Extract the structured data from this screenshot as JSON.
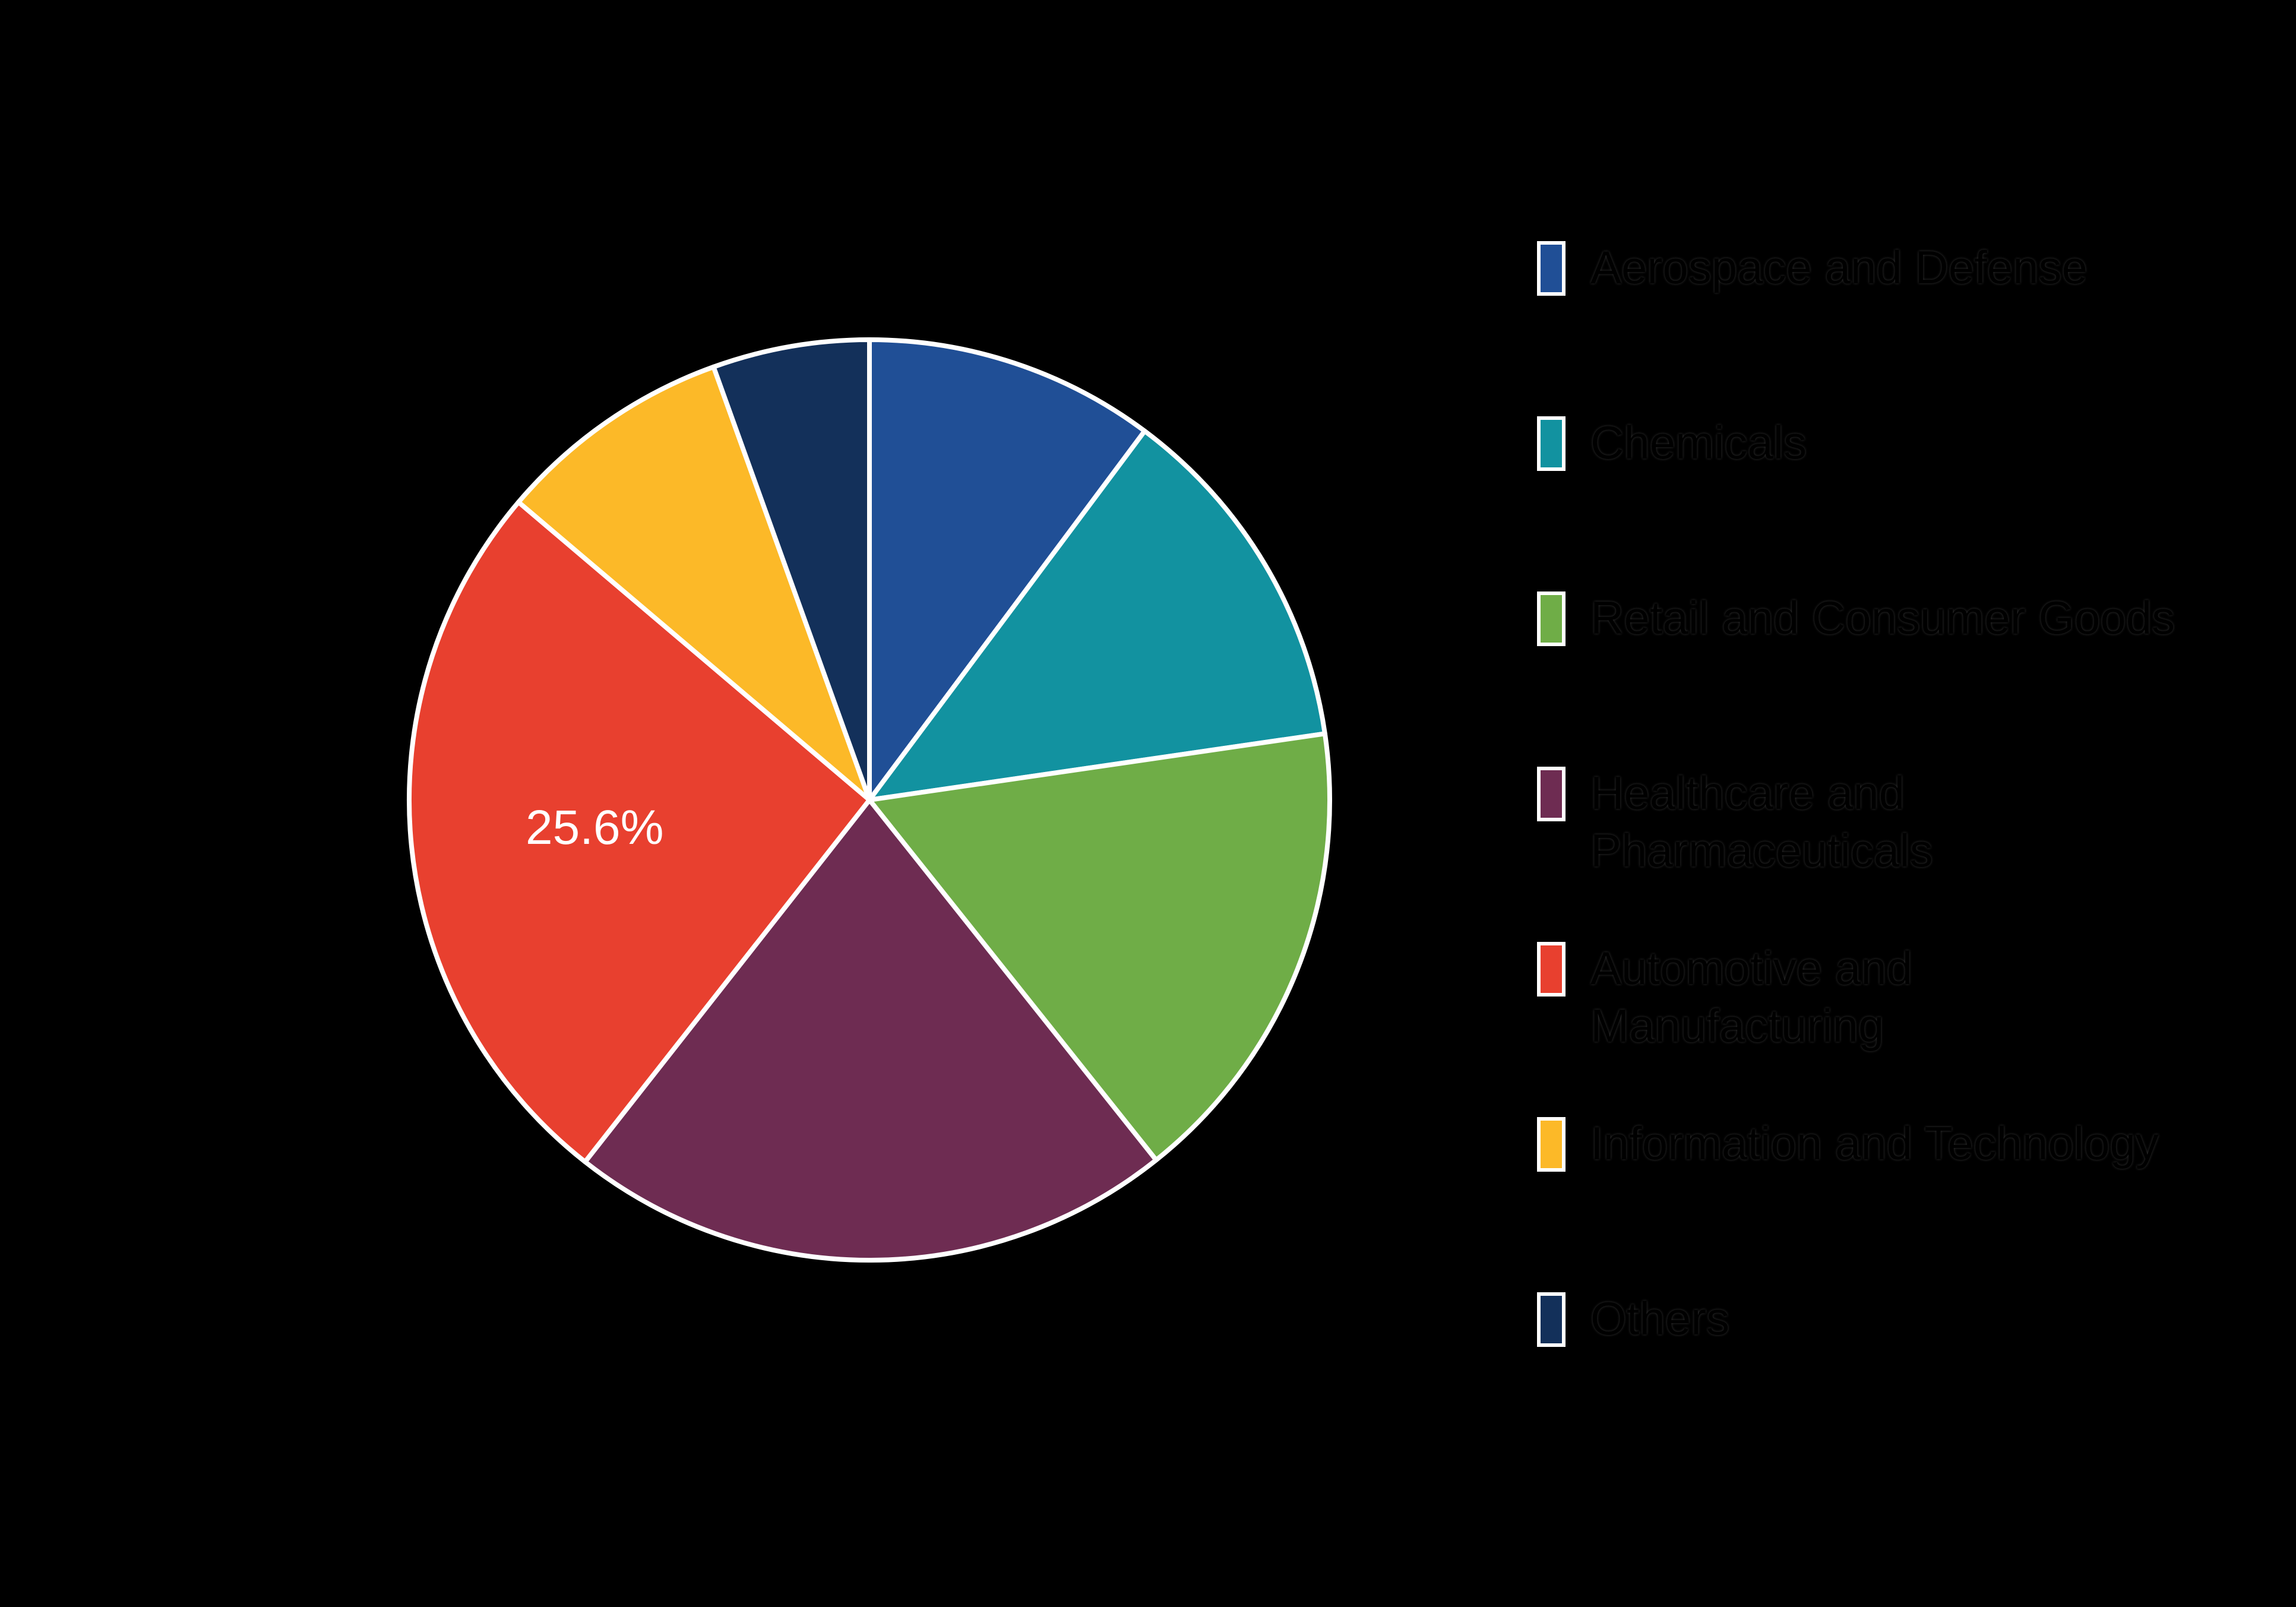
{
  "figure": {
    "background": "#000000"
  },
  "chart_data": {
    "type": "pie",
    "title": "",
    "categories": [
      "Aerospace and Defense",
      "Chemicals",
      "Retail and Consumer Goods",
      "Healthcare and Pharmaceuticals",
      "Automotive and Manufacturing",
      "Information and Technology",
      "Others"
    ],
    "values": [
      10.2,
      12.5,
      16.6,
      21.3,
      25.6,
      8.3,
      5.5
    ],
    "colors": [
      "#204F96",
      "#1292A0",
      "#6FAD47",
      "#6E2C52",
      "#E8402F",
      "#FCB928",
      "#13305A"
    ],
    "unit": "%",
    "start_angle_deg": 0,
    "direction": "clockwise",
    "wedge_edge_color": "#FFFFFF",
    "label_color": "#FFFFFF",
    "shown_label": {
      "category_index": 4,
      "text": "25.6%"
    },
    "legend_position": "right"
  },
  "legend": {
    "text_color": "#000000",
    "swatch_border_color": "#FFFFFF",
    "items": [
      {
        "label": "Aerospace and Defense",
        "color": "#204F96"
      },
      {
        "label": "Chemicals",
        "color": "#1292A0"
      },
      {
        "label": "Retail and Consumer Goods",
        "color": "#6FAD47"
      },
      {
        "label": "Healthcare and Pharmaceuticals",
        "color": "#6E2C52"
      },
      {
        "label": "Automotive and Manufacturing",
        "color": "#E8402F"
      },
      {
        "label": "Information and Technology",
        "color": "#FCB928"
      },
      {
        "label": "Others",
        "color": "#13305A"
      }
    ]
  }
}
